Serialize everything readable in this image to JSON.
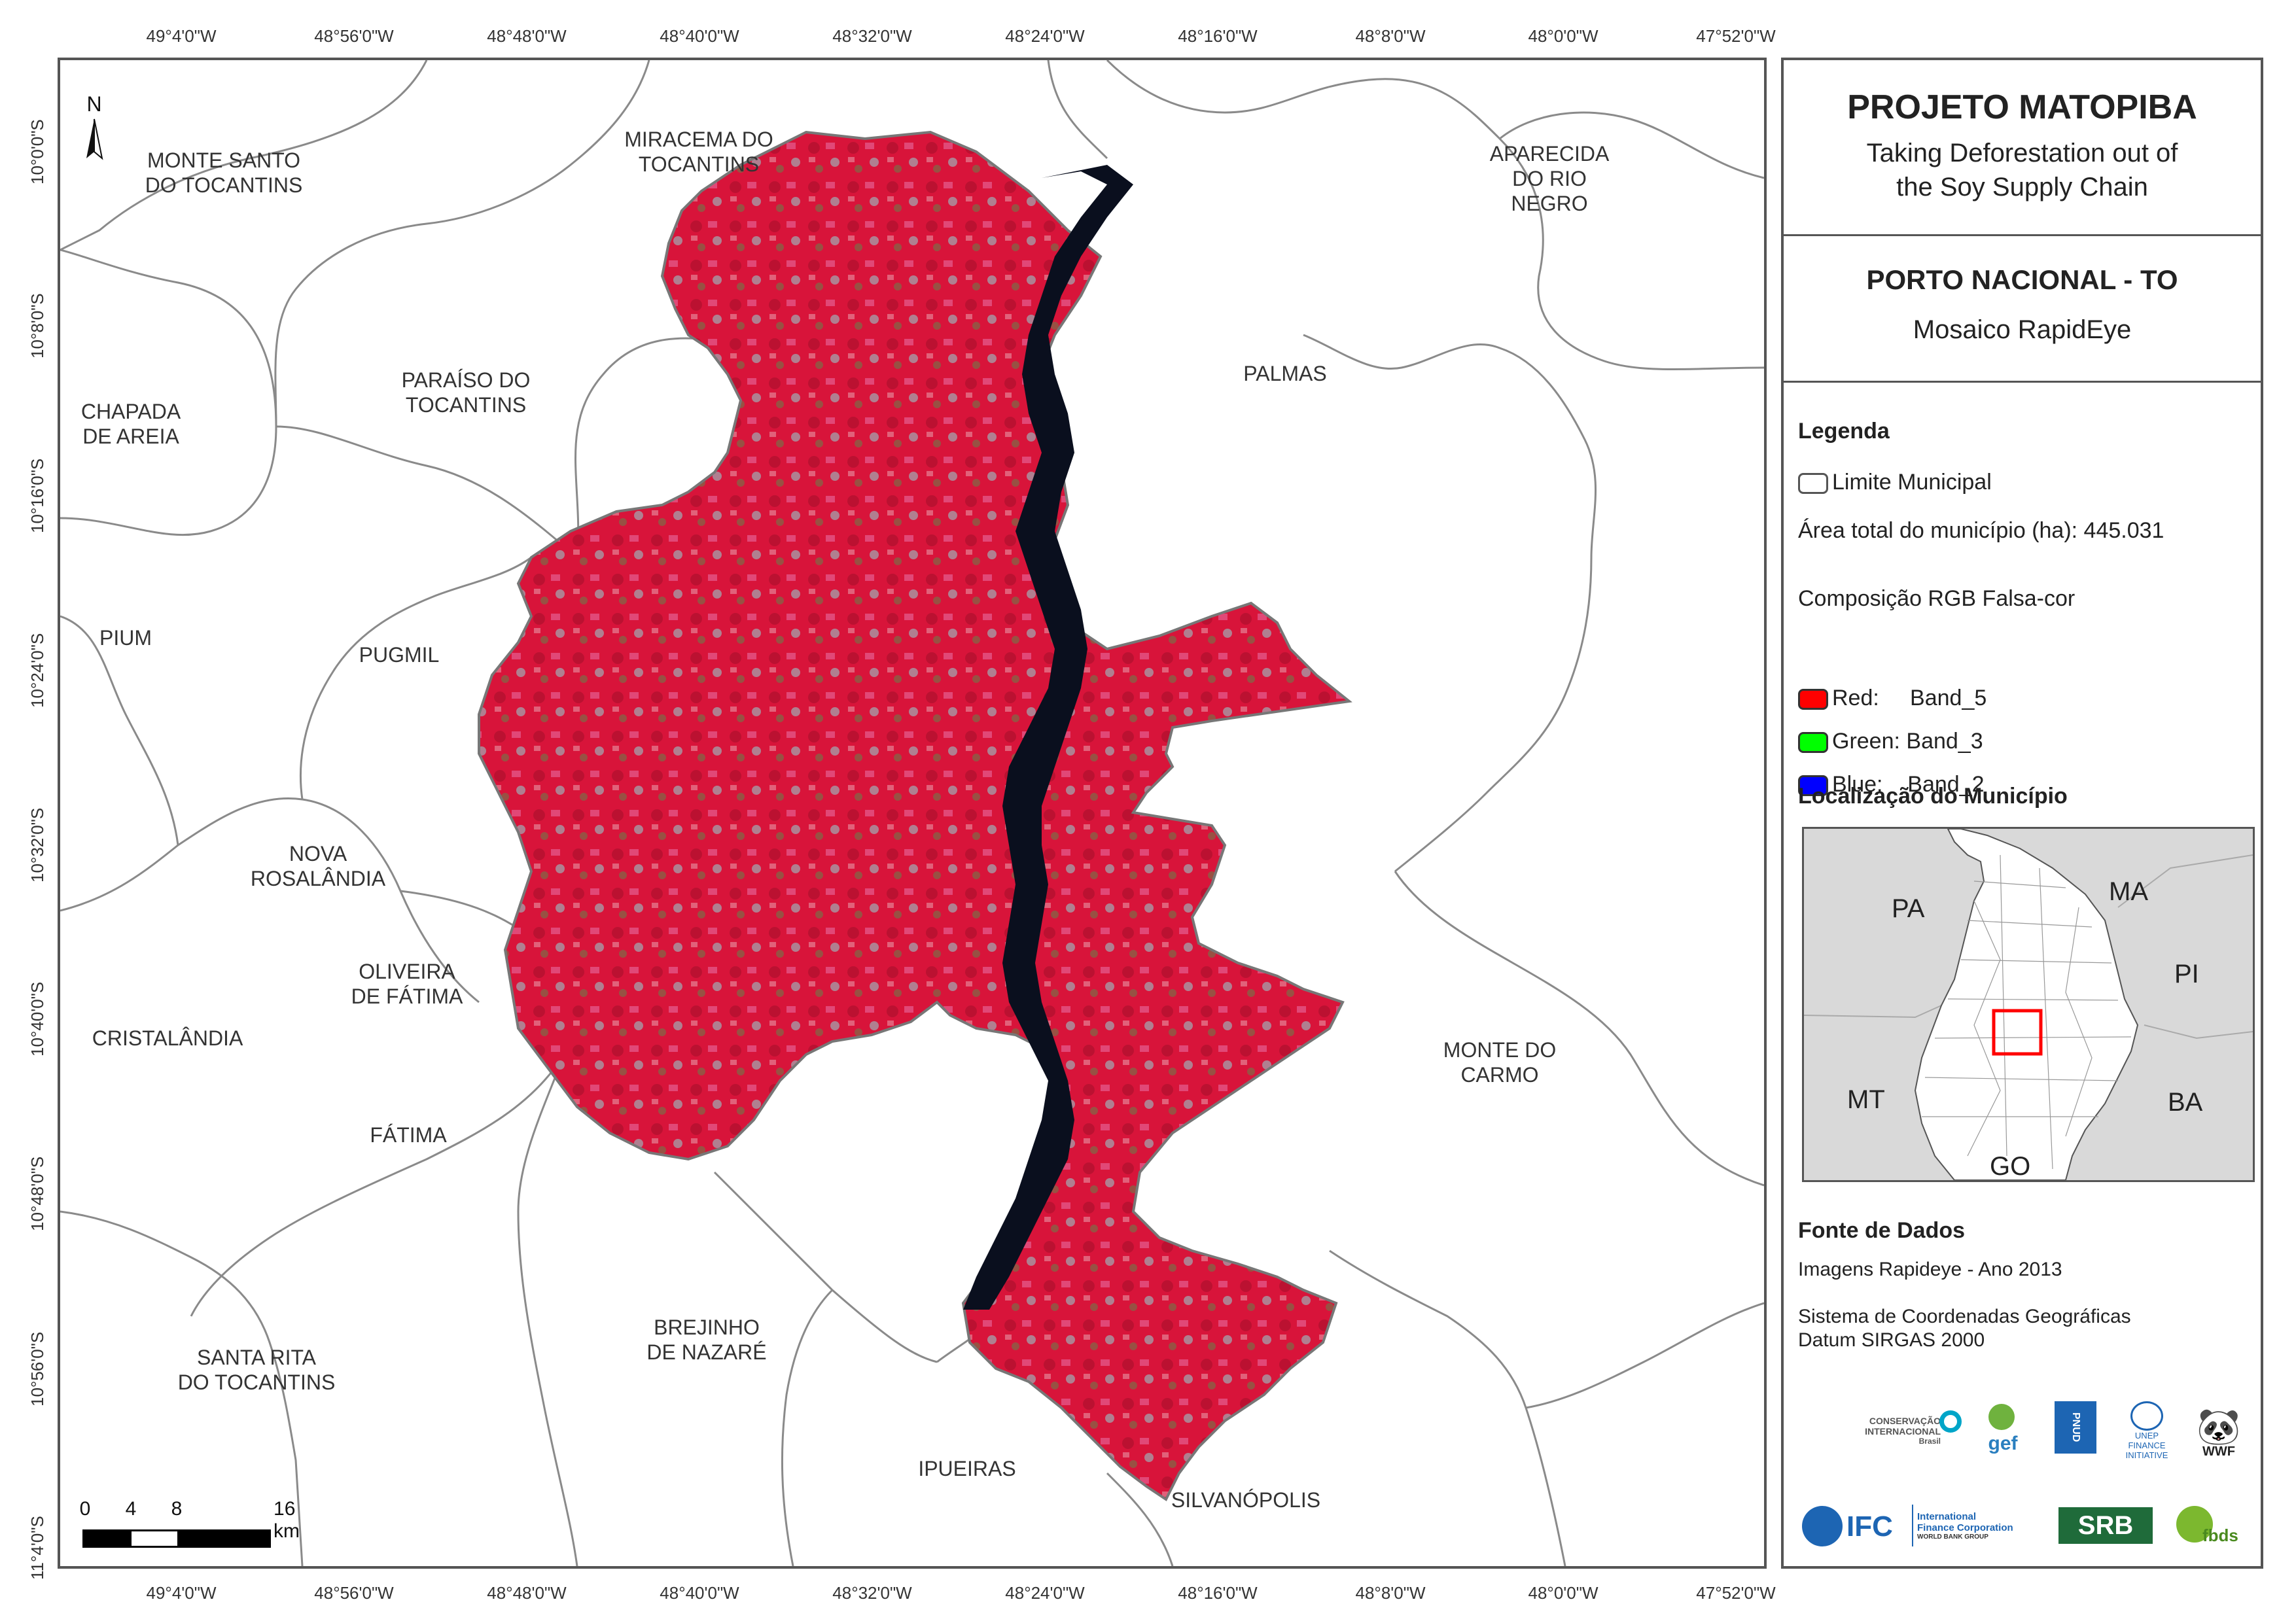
{
  "coords_top": [
    "49°4'0\"W",
    "48°56'0\"W",
    "48°48'0\"W",
    "48°40'0\"W",
    "48°32'0\"W",
    "48°24'0\"W",
    "48°16'0\"W",
    "48°8'0\"W",
    "48°0'0\"W",
    "47°52'0\"W"
  ],
  "coords_left": [
    "10°0'0\"S",
    "10°8'0\"S",
    "10°16'0\"S",
    "10°24'0\"S",
    "10°32'0\"S",
    "10°40'0\"S",
    "10°48'0\"S",
    "10°56'0\"S",
    "11°4'0\"S"
  ],
  "north_label": "N",
  "municipalities": [
    {
      "name": "MONTE SANTO\nDO TOCANTINS"
    },
    {
      "name": "MIRACEMA DO\nTOCANTINS"
    },
    {
      "name": "APARECIDA\nDO RIO\nNEGRO"
    },
    {
      "name": "CHAPADA\nDE AREIA"
    },
    {
      "name": "PARAÍSO DO\nTOCANTINS"
    },
    {
      "name": "PALMAS"
    },
    {
      "name": "PIUM"
    },
    {
      "name": "PUGMIL"
    },
    {
      "name": "NOVA\nROSALÂNDIA"
    },
    {
      "name": "OLIVEIRA\nDE FÁTIMA"
    },
    {
      "name": "CRISTALÂNDIA"
    },
    {
      "name": "MONTE DO\nCARMO"
    },
    {
      "name": "FÁTIMA"
    },
    {
      "name": "BREJINHO\nDE NAZARÉ"
    },
    {
      "name": "SANTA RITA\nDO TOCANTINS"
    },
    {
      "name": "IPUEIRAS"
    },
    {
      "name": "SILVANÓPOLIS"
    }
  ],
  "scale_bar": {
    "labels": [
      "0",
      "4",
      "8",
      "16 km"
    ]
  },
  "panel": {
    "title": "PROJETO MATOPIBA",
    "subtitle_1": "Taking Deforestation out of",
    "subtitle_2": "the Soy Supply Chain",
    "place": "PORTO NACIONAL - TO",
    "mosaic": "Mosaico RapidEye",
    "legend_heading": "Legenda",
    "legend_boundary": "Limite Municipal",
    "area_label": "Área total do município (ha): 445.031",
    "rgb_heading": "Composição RGB Falsa-cor",
    "bands": [
      {
        "label": "Red:     Band_5",
        "color": "#ff0000"
      },
      {
        "label": "Green: Band_3",
        "color": "#00ff00"
      },
      {
        "label": "Blue:    Band_2",
        "color": "#0000ff"
      }
    ],
    "location_heading": "Localização do Município",
    "location_labels": [
      "PA",
      "MA",
      "PI",
      "MT",
      "BA",
      "GO"
    ],
    "sources_heading": "Fonte de Dados",
    "source_1": "Imagens Rapideye - Ano 2013",
    "source_2": "Sistema de Coordenadas Geográficas",
    "source_3": "Datum SIRGAS 2000",
    "logos": {
      "ci": "CONSERVAÇÃO\nINTERNACIONAL",
      "ci_sub": "Brasil",
      "gef": "gef",
      "pnud": "PNUD",
      "unep": "UNEP\nFINANCE\nINITIATIVE",
      "wwf": "WWF",
      "ifc": "IFC",
      "ifc_full": "International\nFinance Corporation",
      "ifc_sub": "WORLD BANK GROUP",
      "srb": "SRB",
      "fbds": "fbds"
    }
  },
  "colors": {
    "satellite_red": "#d8143a",
    "river": "#0a0f1e",
    "boundary": "#888888",
    "highlight": "#ff0000"
  }
}
